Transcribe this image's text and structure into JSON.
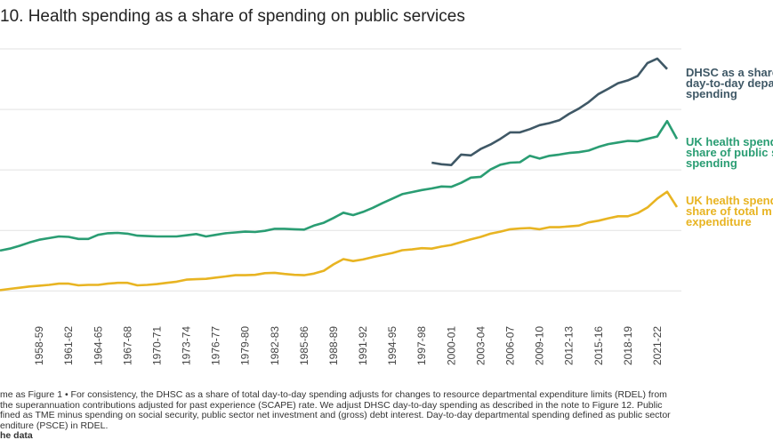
{
  "chart_data": {
    "type": "line",
    "title": "10. Health spending as a share of spending on public services",
    "x_ticks": [
      "1958-59",
      "1961-62",
      "1964-65",
      "1967-68",
      "1970-71",
      "1973-74",
      "1976-77",
      "1979-80",
      "1982-83",
      "1985-86",
      "1988-89",
      "1991-92",
      "1994-95",
      "1997-98",
      "2000-01",
      "2003-04",
      "2006-07",
      "2009-10",
      "2012-13",
      "2015-16",
      "2018-19",
      "2021-22"
    ],
    "grid": true,
    "series": [
      {
        "name": "DHSC as a share of day-to-day departmental spending",
        "label_lines": [
          "DHSC as a share",
          "day-to-day depa",
          "spending"
        ],
        "color": "#3f5866",
        "start_year": 1998,
        "values": [
          56.8,
          56.4,
          56.2,
          58.8,
          58.6,
          60.2,
          61.3,
          62.7,
          64.3,
          64.3,
          65.1,
          66.1,
          66.6,
          67.3,
          68.9,
          70.2,
          71.8,
          73.8,
          75.1,
          76.5,
          77.2,
          78.3,
          81.5,
          82.6,
          80.0
        ]
      },
      {
        "name": "UK health spending as a share of public services spending",
        "label_lines": [
          "UK health spend",
          "share of public s",
          "spending"
        ],
        "color": "#2a9d73",
        "start_year": 1954,
        "values": [
          35.0,
          35.5,
          36.2,
          37.0,
          37.7,
          38.1,
          38.5,
          38.4,
          37.9,
          37.9,
          38.9,
          39.3,
          39.4,
          39.2,
          38.7,
          38.6,
          38.5,
          38.5,
          38.5,
          38.8,
          39.1,
          38.5,
          38.9,
          39.3,
          39.5,
          39.7,
          39.6,
          39.9,
          40.4,
          40.4,
          40.3,
          40.2,
          41.2,
          41.9,
          43.1,
          44.4,
          43.8,
          44.6,
          45.6,
          46.8,
          47.9,
          49.0,
          49.5,
          50.0,
          50.4,
          50.9,
          50.8,
          51.8,
          53.1,
          53.3,
          55.1,
          56.3,
          56.8,
          56.9,
          58.5,
          57.8,
          58.5,
          58.8,
          59.2,
          59.4,
          59.8,
          60.7,
          61.4,
          61.8,
          62.2,
          62.1,
          62.7,
          63.3,
          67.1,
          62.7
        ]
      },
      {
        "name": "UK health spending as a share of total managed expenditure",
        "label_lines": [
          "UK health spend",
          "share of total m",
          "expenditure"
        ],
        "color": "#e8b422",
        "start_year": 1954,
        "values": [
          25.2,
          25.5,
          25.8,
          26.1,
          26.3,
          26.5,
          26.8,
          26.8,
          26.4,
          26.5,
          26.5,
          26.8,
          27.0,
          27.0,
          26.4,
          26.5,
          26.7,
          27.0,
          27.3,
          27.8,
          27.9,
          28.0,
          28.3,
          28.6,
          28.9,
          28.9,
          29.0,
          29.4,
          29.5,
          29.2,
          29.0,
          28.9,
          29.3,
          30.0,
          31.6,
          32.9,
          32.4,
          32.8,
          33.4,
          33.9,
          34.4,
          35.1,
          35.3,
          35.6,
          35.5,
          36.0,
          36.4,
          37.1,
          37.8,
          38.4,
          39.2,
          39.7,
          40.3,
          40.5,
          40.6,
          40.3,
          40.8,
          40.8,
          41.0,
          41.2,
          42.0,
          42.4,
          43.0,
          43.5,
          43.5,
          44.3,
          45.7,
          47.9,
          49.6,
          45.8
        ]
      }
    ]
  },
  "notes": {
    "line1": "me as Figure 1 • For consistency, the DHSC as a share of total day-to-day spending adjusts for changes to resource departmental expenditure limits (RDEL) from",
    "line2": "the superannuation contributions adjusted for past experience (SCAPE) rate. We adjust DHSC day-to-day spending as described in the note to Figure 12. Public",
    "line3": "fined as TME minus spending on social security, public sector net investment and (gross) debt interest. Day-to-day departmental spending defined as public sector",
    "line4": "enditure (PSCE) in RDEL.",
    "source": "he data"
  }
}
